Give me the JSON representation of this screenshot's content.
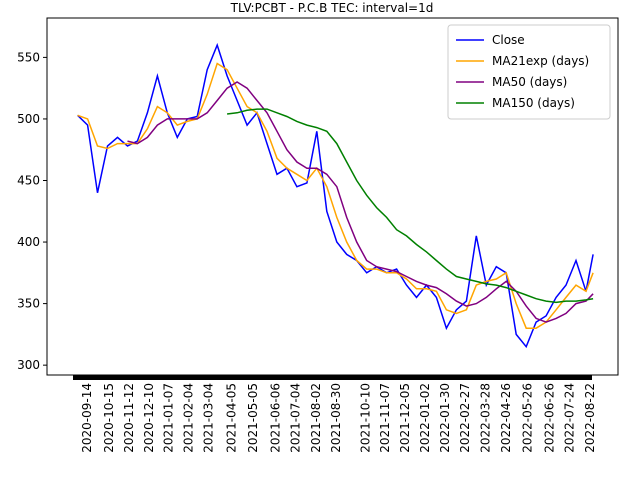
{
  "chart_data": {
    "type": "line",
    "title": "TLV:PCBT - P.C.B TEC: interval=1d",
    "x": [
      "2020-09-01",
      "2020-09-15",
      "2020-09-29",
      "2020-10-13",
      "2020-10-27",
      "2020-11-10",
      "2020-11-24",
      "2020-12-08",
      "2020-12-22",
      "2021-01-05",
      "2021-01-19",
      "2021-02-02",
      "2021-02-16",
      "2021-03-02",
      "2021-03-16",
      "2021-03-30",
      "2021-04-13",
      "2021-04-27",
      "2021-05-11",
      "2021-05-25",
      "2021-06-08",
      "2021-06-22",
      "2021-07-06",
      "2021-07-20",
      "2021-08-03",
      "2021-08-17",
      "2021-08-31",
      "2021-09-14",
      "2021-09-28",
      "2021-10-12",
      "2021-10-26",
      "2021-11-09",
      "2021-11-23",
      "2021-12-07",
      "2021-12-21",
      "2022-01-04",
      "2022-01-18",
      "2022-02-01",
      "2022-02-15",
      "2022-03-01",
      "2022-03-15",
      "2022-03-29",
      "2022-04-12",
      "2022-04-26",
      "2022-05-10",
      "2022-05-24",
      "2022-06-07",
      "2022-06-21",
      "2022-07-05",
      "2022-07-19",
      "2022-08-02",
      "2022-08-16",
      "2022-08-26"
    ],
    "series": [
      {
        "name": "Close",
        "color": "#0000ff",
        "values": [
          503,
          495,
          440,
          478,
          485,
          478,
          482,
          505,
          535,
          505,
          485,
          500,
          502,
          540,
          560,
          535,
          515,
          495,
          505,
          480,
          455,
          460,
          445,
          448,
          490,
          425,
          400,
          390,
          385,
          375,
          380,
          375,
          378,
          365,
          355,
          365,
          355,
          330,
          345,
          352,
          405,
          365,
          380,
          375,
          325,
          315,
          335,
          340,
          355,
          365,
          385,
          360,
          390
        ]
      },
      {
        "name": "MA21exp (days)",
        "color": "#ffa500",
        "values": [
          503,
          500,
          478,
          476,
          480,
          480,
          480,
          492,
          510,
          505,
          495,
          498,
          500,
          520,
          545,
          540,
          525,
          510,
          505,
          490,
          468,
          460,
          455,
          450,
          460,
          445,
          420,
          400,
          385,
          378,
          378,
          375,
          375,
          370,
          362,
          362,
          360,
          345,
          342,
          345,
          365,
          368,
          370,
          375,
          350,
          330,
          330,
          335,
          345,
          355,
          365,
          360,
          375
        ]
      },
      {
        "name": "MA50 (days)",
        "color": "#800080",
        "values": [
          null,
          null,
          null,
          null,
          null,
          482,
          480,
          485,
          495,
          500,
          500,
          500,
          500,
          505,
          515,
          525,
          530,
          525,
          515,
          505,
          490,
          475,
          465,
          460,
          460,
          455,
          445,
          420,
          400,
          385,
          380,
          378,
          376,
          372,
          368,
          365,
          363,
          358,
          352,
          348,
          350,
          355,
          362,
          368,
          360,
          348,
          338,
          335,
          338,
          342,
          350,
          352,
          358
        ]
      },
      {
        "name": "MA150 (days)",
        "color": "#008000",
        "values": [
          null,
          null,
          null,
          null,
          null,
          null,
          null,
          null,
          null,
          null,
          null,
          null,
          null,
          null,
          null,
          504,
          505,
          507,
          508,
          508,
          505,
          502,
          498,
          495,
          493,
          490,
          480,
          465,
          450,
          438,
          428,
          420,
          410,
          405,
          398,
          392,
          385,
          378,
          372,
          370,
          368,
          366,
          365,
          363,
          360,
          357,
          354,
          352,
          351,
          352,
          352,
          353,
          354
        ]
      }
    ],
    "xlim": [
      "2020-07-20",
      "2022-09-30"
    ],
    "xticks": [
      "2020-09-14",
      "2020-10-15",
      "2020-11-12",
      "2020-12-10",
      "2021-01-07",
      "2021-02-04",
      "2021-03-04",
      "2021-04-05",
      "2021-05-05",
      "2021-06-06",
      "2021-07-04",
      "2021-08-02",
      "2021-08-30",
      "2021-10-10",
      "2021-11-07",
      "2021-12-05",
      "2022-01-02",
      "2022-01-30",
      "2022-02-27",
      "2022-03-28",
      "2022-04-26",
      "2022-05-26",
      "2022-06-26",
      "2022-07-24",
      "2022-08-22"
    ],
    "ylim": [
      292,
      582
    ],
    "yticks": [
      300,
      350,
      400,
      450,
      500,
      550
    ],
    "legend": "upper right"
  }
}
